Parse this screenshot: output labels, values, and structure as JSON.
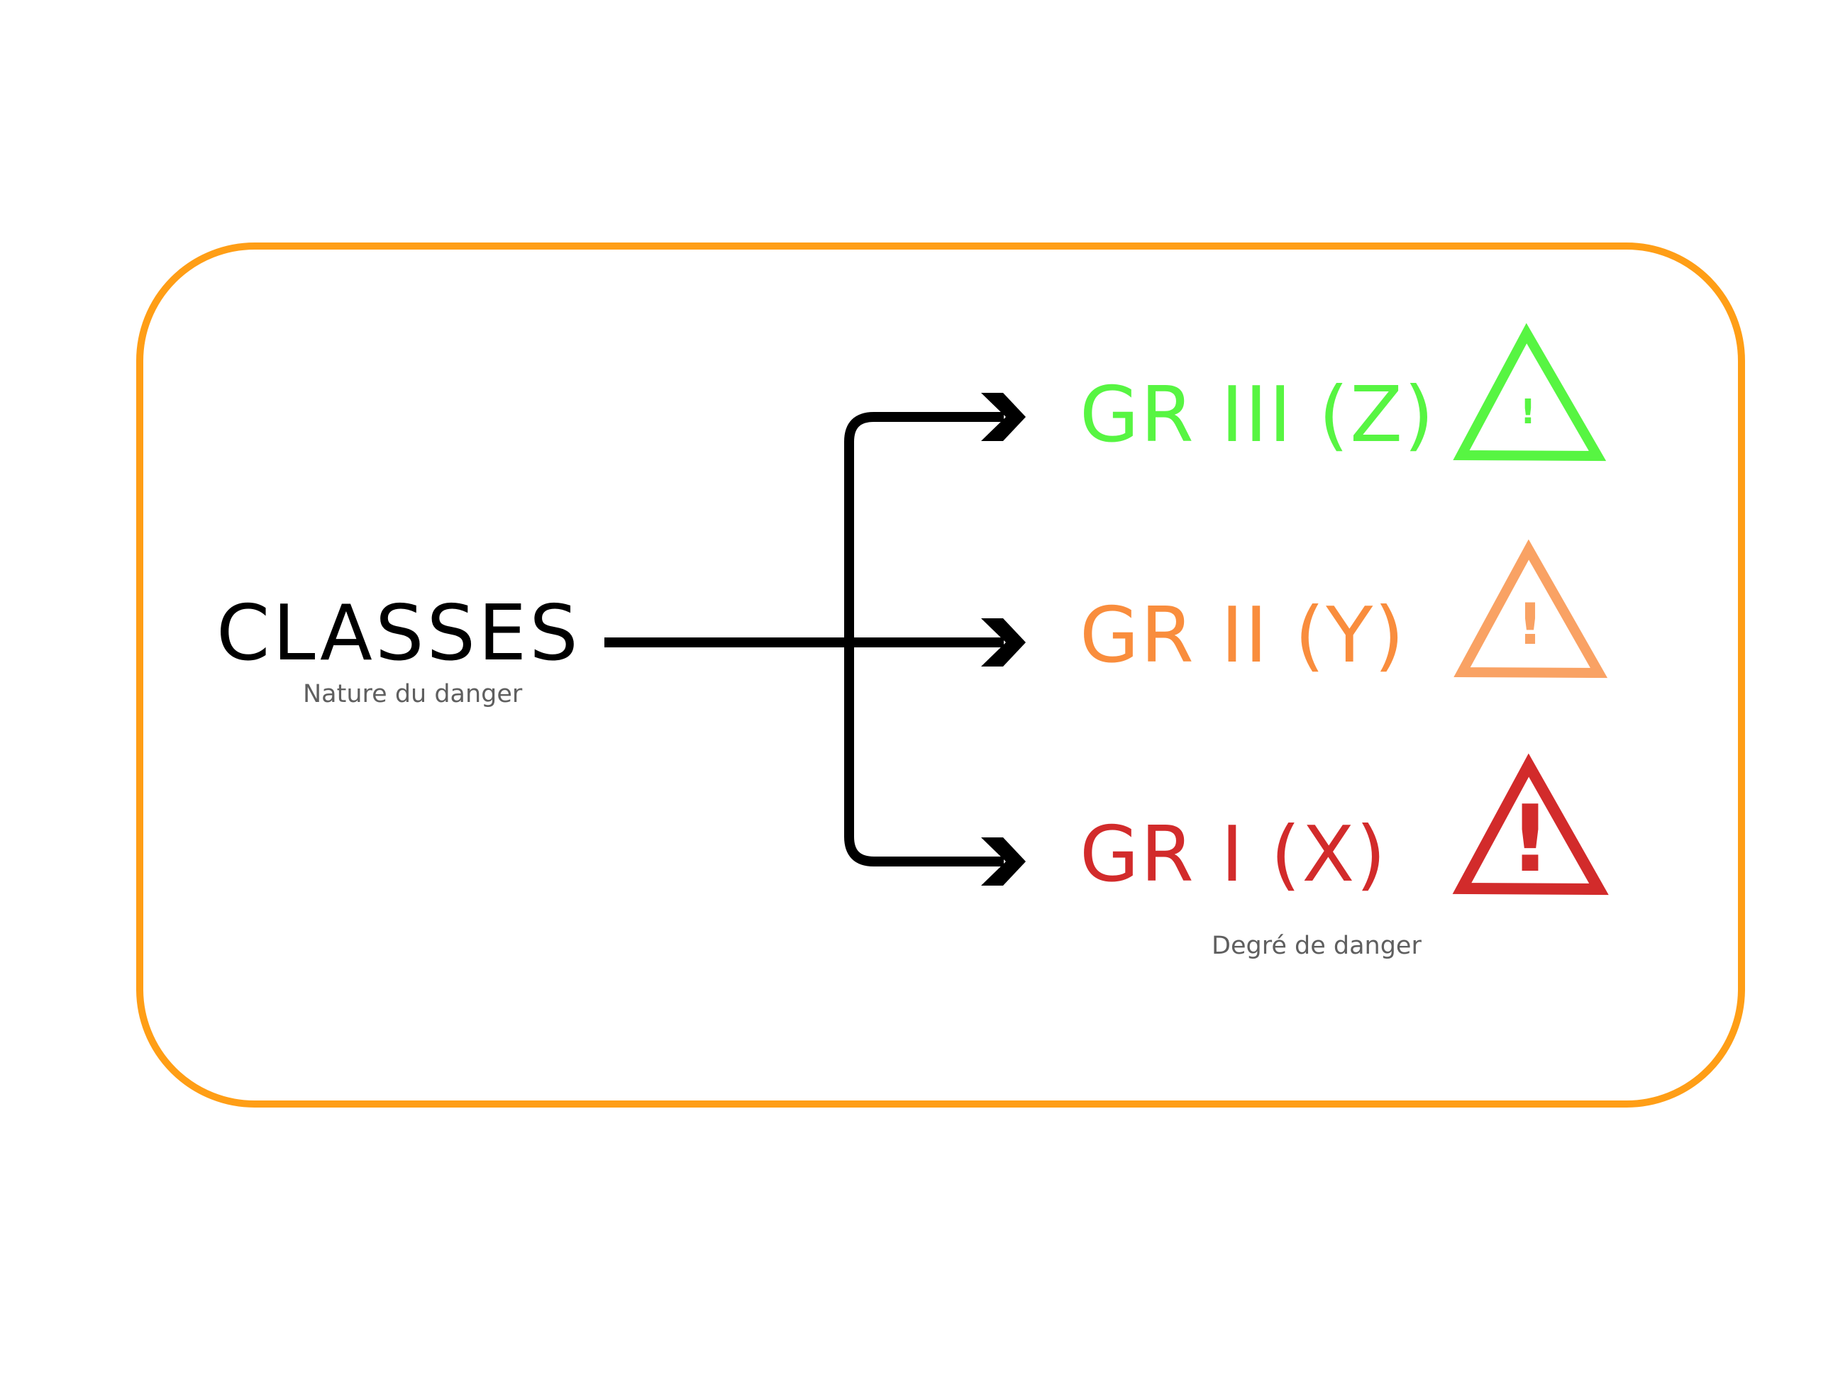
{
  "source": {
    "title": "CLASSES",
    "caption": "Nature du danger"
  },
  "target_caption": "Degré de danger",
  "groups": [
    {
      "label": "GR III (Z)",
      "color": "#57f542",
      "icon": "warning-triangle-icon",
      "exclamation": "!"
    },
    {
      "label": "GR II (Y)",
      "color": "#f98d3d",
      "icon": "warning-triangle-icon",
      "exclamation": "!"
    },
    {
      "label": "GR I (X)",
      "color": "#d22b2b",
      "icon": "warning-triangle-icon",
      "exclamation": "!"
    }
  ],
  "colors": {
    "frame": "#ff9e16",
    "arrows": "#000000",
    "triangle_ii": "#f9a264"
  }
}
